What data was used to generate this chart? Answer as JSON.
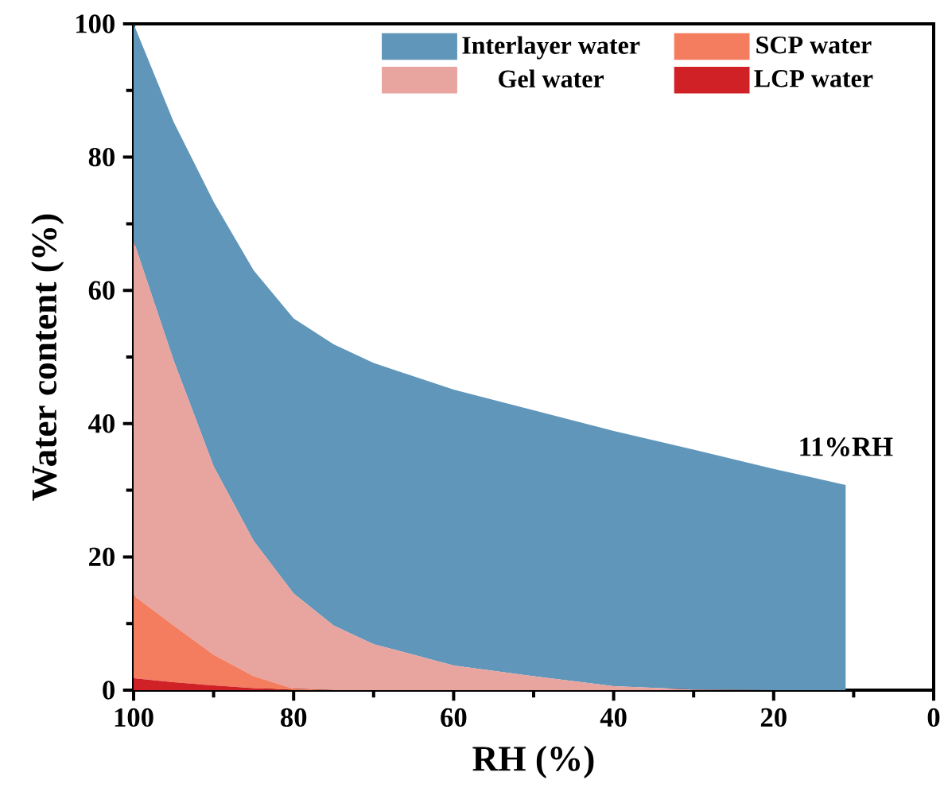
{
  "chart_data": {
    "type": "area",
    "stacked": true,
    "xlabel": "RH (%)",
    "ylabel": "Water content (%)",
    "x": [
      100,
      95,
      90,
      85,
      80,
      75,
      70,
      60,
      50,
      40,
      30,
      20,
      11
    ],
    "series": [
      {
        "name": "LCP water",
        "color": "#d02127",
        "values": [
          1.8,
          1.2,
          0.7,
          0.3,
          0,
          0,
          0,
          0,
          0,
          0,
          0,
          0,
          0
        ]
      },
      {
        "name": "SCP water",
        "color": "#f47c5f",
        "values": [
          12.4,
          8.5,
          4.6,
          1.8,
          0.2,
          0,
          0,
          0,
          0,
          0,
          0,
          0,
          0
        ]
      },
      {
        "name": "Gel water",
        "color": "#e8a49f",
        "values": [
          53.2,
          39.8,
          28.3,
          20.3,
          14.3,
          9.7,
          6.9,
          3.7,
          2.1,
          0.6,
          0.1,
          0,
          0
        ]
      },
      {
        "name": "Interlayer water",
        "color": "#6096b9",
        "values": [
          32.6,
          35.8,
          39.7,
          40.6,
          41.3,
          42.2,
          42.2,
          41.4,
          39.9,
          38.3,
          36.0,
          33.2,
          30.8
        ]
      }
    ],
    "xlim": [
      100,
      0
    ],
    "ylim": [
      0,
      100
    ],
    "xticks": [
      100,
      {
        "value": 90,
        "label": null
      },
      80,
      {
        "value": 70,
        "label": null
      },
      60,
      {
        "value": 50,
        "label": null
      },
      40,
      {
        "value": 30,
        "label": null
      },
      20,
      {
        "value": 10,
        "label": null
      },
      0
    ],
    "yticks": [
      0,
      {
        "value": 10,
        "label": null
      },
      20,
      {
        "value": 30,
        "label": null
      },
      40,
      {
        "value": 50,
        "label": null
      },
      60,
      {
        "value": 70,
        "label": null
      },
      80,
      {
        "value": 90,
        "label": null
      },
      100
    ],
    "annotations": [
      {
        "text": "11%RH",
        "x": 11,
        "y": 30.8
      }
    ],
    "legend": "top",
    "grid": false
  }
}
